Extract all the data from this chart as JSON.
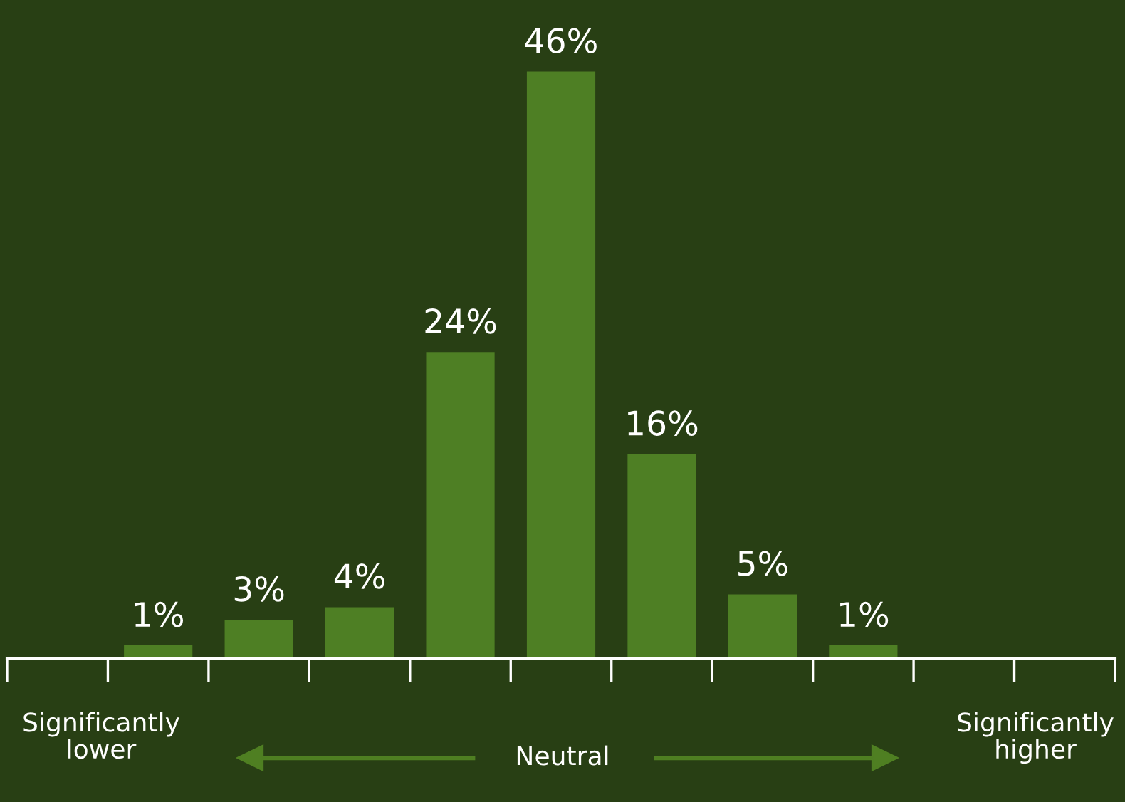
{
  "chart_data": {
    "type": "bar",
    "categories": [
      null,
      null,
      null,
      null,
      null,
      null,
      null,
      null
    ],
    "values": [
      1,
      3,
      4,
      24,
      46,
      16,
      5,
      1
    ],
    "value_labels": [
      "1%",
      "3%",
      "4%",
      "24%",
      "46%",
      "16%",
      "5%",
      "1%"
    ],
    "color": "#4e7f24",
    "annotations": [
      "Significantly\nlower",
      "Neutral",
      "Significantly\nhigher"
    ],
    "grid": false,
    "legend": false
  }
}
